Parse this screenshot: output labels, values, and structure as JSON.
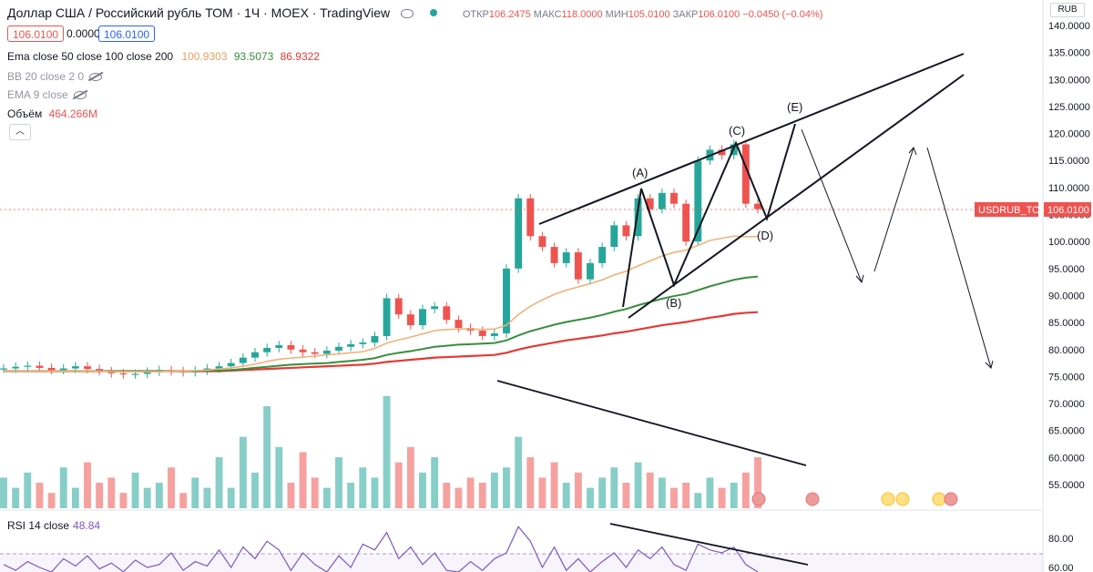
{
  "header": {
    "title": "Доллар США / Российский рубль ТОМ · 1Ч · MOEX · TradingView",
    "ohlc": [
      {
        "k": "ОТКР",
        "v": "106.2475"
      },
      {
        "k": "МАКС",
        "v": "118.0000"
      },
      {
        "k": "МИН",
        "v": "105.0100"
      },
      {
        "k": "ЗАКР",
        "v": "106.0100"
      },
      {
        "k": "",
        "v": "−0.0450 (−0.04%)"
      }
    ],
    "bid": "106.0100",
    "spread": "0.0000",
    "ask": "106.0100",
    "currency": "RUB",
    "colors": {
      "up": "#26a69a",
      "down": "#ef5350",
      "accent": "#2962ff"
    }
  },
  "indicators": {
    "ema": {
      "label": "Ema close 50 close 100 close 200",
      "v50": "100.9303",
      "v100": "93.5073",
      "v200": "86.9322",
      "c50": "#f0b27a",
      "c100": "#388e3c",
      "c200": "#e53935"
    },
    "bb": {
      "label": "BB 20 close 2 0"
    },
    "ema9": {
      "label": "EMA 9 close"
    },
    "volume": {
      "label": "Объём",
      "value": "464.266M"
    },
    "rsi": {
      "label": "RSI 14 close",
      "value": "48.84",
      "color": "#7e57c2"
    }
  },
  "chart_data": {
    "type": "line",
    "price_axis": {
      "ticks": [
        140,
        135,
        130,
        125,
        120,
        115,
        110,
        105,
        100,
        95,
        90,
        85,
        80,
        75,
        70,
        65,
        60,
        55
      ],
      "labels": [
        "140.0000",
        "135.0000",
        "130.0000",
        "125.0000",
        "120.0000",
        "115.0000",
        "110.0000",
        "105.0000",
        "100.0000",
        "95.0000",
        "90.0000",
        "85.0000",
        "80.0000",
        "75.0000",
        "70.0000",
        "65.0000",
        "60.0000",
        "55.0000"
      ]
    },
    "rsi_axis": {
      "ticks": [
        80,
        60
      ],
      "labels": [
        "80.00",
        "60.00"
      ]
    },
    "last_price": {
      "symbol": "USDRUB_TOM",
      "value": 106.01,
      "label": "106.0100"
    },
    "price_close": [
      76.5,
      76.8,
      77.0,
      76.6,
      76.2,
      76.5,
      76.9,
      76.4,
      76.0,
      75.6,
      75.4,
      75.5,
      75.9,
      76.2,
      76.0,
      75.8,
      76.1,
      76.5,
      76.9,
      77.5,
      78.5,
      79.5,
      80.3,
      80.8,
      80.0,
      79.5,
      79.2,
      79.8,
      80.5,
      81.0,
      81.3,
      82.5,
      89.5,
      86.5,
      84.5,
      87.5,
      88.0,
      85.5,
      84.0,
      83.5,
      82.5,
      83.0,
      95,
      108,
      101,
      99,
      96,
      98,
      93,
      96,
      99,
      103,
      101,
      108,
      106,
      109,
      107,
      100,
      115,
      117,
      116,
      118,
      107,
      106
    ],
    "ema50": [
      76.0,
      76.0,
      76.0,
      76.0,
      76.0,
      76.0,
      76.0,
      76.0,
      76.0,
      75.9,
      75.9,
      75.9,
      75.9,
      75.9,
      76.0,
      76.0,
      76.1,
      76.2,
      76.4,
      76.6,
      76.9,
      77.3,
      77.8,
      78.2,
      78.4,
      78.6,
      78.8,
      79.0,
      79.2,
      79.4,
      79.6,
      80.2,
      81.2,
      81.8,
      82.3,
      82.9,
      83.5,
      83.7,
      83.8,
      83.8,
      83.7,
      83.8,
      84.5,
      86.5,
      88.0,
      89.2,
      90.2,
      91.0,
      91.6,
      92.2,
      92.9,
      93.8,
      94.5,
      95.5,
      96.4,
      97.3,
      98.0,
      98.4,
      99.3,
      100.2,
      100.6,
      101.0,
      100.9,
      100.93
    ],
    "ema100": [
      76.0,
      76.0,
      76.0,
      76.0,
      76.0,
      76.0,
      76.0,
      76.0,
      76.0,
      76.0,
      76.0,
      76.0,
      76.0,
      76.0,
      76.0,
      76.0,
      76.0,
      76.1,
      76.1,
      76.2,
      76.4,
      76.6,
      76.8,
      77.0,
      77.2,
      77.3,
      77.4,
      77.5,
      77.7,
      77.9,
      78.1,
      78.4,
      79.0,
      79.4,
      79.7,
      80.1,
      80.5,
      80.7,
      80.9,
      81.0,
      81.1,
      81.2,
      81.7,
      82.6,
      83.4,
      84.0,
      84.6,
      85.1,
      85.5,
      85.9,
      86.4,
      87.0,
      87.5,
      88.2,
      88.8,
      89.4,
      89.9,
      90.3,
      91.0,
      91.7,
      92.3,
      92.9,
      93.3,
      93.51
    ],
    "ema200": [
      76.0,
      76.0,
      76.0,
      76.0,
      76.0,
      76.0,
      76.0,
      76.0,
      76.0,
      76.0,
      76.0,
      76.0,
      76.0,
      76.0,
      76.0,
      76.0,
      76.0,
      76.0,
      76.0,
      76.1,
      76.2,
      76.3,
      76.4,
      76.5,
      76.6,
      76.7,
      76.8,
      76.9,
      77.0,
      77.1,
      77.2,
      77.4,
      77.7,
      77.9,
      78.1,
      78.3,
      78.5,
      78.6,
      78.7,
      78.8,
      78.9,
      79.0,
      79.4,
      80.0,
      80.5,
      80.9,
      81.3,
      81.7,
      82.0,
      82.3,
      82.6,
      83.0,
      83.3,
      83.7,
      84.1,
      84.5,
      84.8,
      85.1,
      85.5,
      85.9,
      86.2,
      86.6,
      86.8,
      86.93
    ],
    "volume": [
      6,
      4,
      7,
      5,
      3,
      8,
      4,
      9,
      5,
      6,
      3,
      7,
      4,
      5,
      8,
      3,
      6,
      4,
      10,
      4,
      14,
      7,
      20,
      12,
      5,
      11,
      6,
      4,
      10,
      5,
      8,
      6,
      22,
      9,
      12,
      7,
      10,
      5,
      4,
      6,
      5,
      7,
      8,
      14,
      10,
      6,
      9,
      5,
      7,
      4,
      6,
      8,
      5,
      9,
      7,
      6,
      4,
      5,
      3,
      6,
      4,
      5,
      7,
      10
    ],
    "rsi": [
      62,
      58,
      64,
      60,
      56,
      66,
      61,
      68,
      59,
      63,
      57,
      65,
      60,
      62,
      70,
      58,
      64,
      61,
      72,
      60,
      74,
      66,
      78,
      72,
      58,
      70,
      62,
      56,
      68,
      60,
      76,
      72,
      84,
      66,
      74,
      62,
      70,
      58,
      56,
      64,
      58,
      66,
      70,
      88,
      78,
      60,
      74,
      58,
      66,
      56,
      64,
      70,
      60,
      72,
      66,
      74,
      62,
      58,
      76,
      72,
      70,
      74,
      62,
      49
    ],
    "wave_labels": [
      "(A)",
      "(B)",
      "(C)",
      "(D)",
      "(E)"
    ],
    "annotations": "hand-drawn rising wedge with ABCDE waves, scenario arrows, descending trendlines on volume and RSI",
    "grid": false
  }
}
